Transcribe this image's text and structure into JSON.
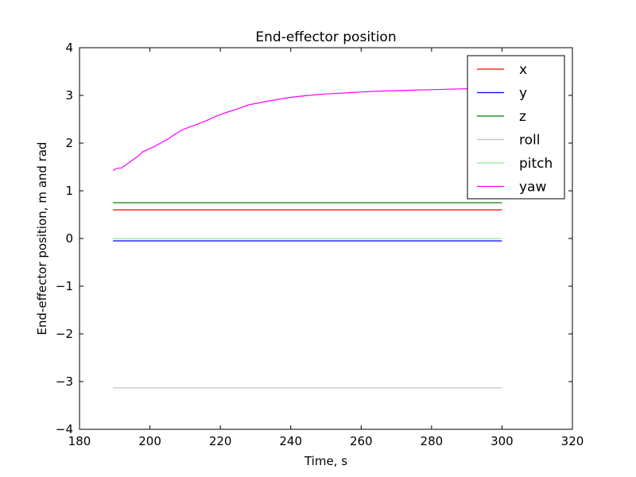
{
  "chart_data": {
    "type": "line",
    "title": "End-effector position",
    "xlabel": "Time, s",
    "ylabel": "End-effector position, m and rad",
    "xlim": [
      180,
      320
    ],
    "ylim": [
      -4,
      4
    ],
    "xticks": [
      180,
      200,
      220,
      240,
      260,
      280,
      300,
      320
    ],
    "xtick_labels": [
      "180",
      "200",
      "220",
      "240",
      "260",
      "280",
      "300",
      "320"
    ],
    "yticks": [
      -4,
      -3,
      -2,
      -1,
      0,
      1,
      2,
      3,
      4
    ],
    "ytick_labels": [
      "−4",
      "−3",
      "−2",
      "−1",
      "0",
      "1",
      "2",
      "3",
      "4"
    ],
    "grid": false,
    "legend_position": "top-right",
    "series": [
      {
        "name": "x",
        "color": "#ff0000",
        "x": [
          189.5,
          300
        ],
        "y": [
          0.6,
          0.6
        ]
      },
      {
        "name": "y",
        "color": "#0000ff",
        "x": [
          189.5,
          300
        ],
        "y": [
          -0.05,
          -0.05
        ]
      },
      {
        "name": "z",
        "color": "#008000",
        "x": [
          189.5,
          300
        ],
        "y": [
          0.75,
          0.75
        ]
      },
      {
        "name": "roll",
        "color": "#bfbfbf",
        "x": [
          189.5,
          300
        ],
        "y": [
          -3.13,
          -3.13
        ]
      },
      {
        "name": "pitch",
        "color": "#90ee90",
        "x": [
          189.5,
          300
        ],
        "y": [
          0.0,
          0.0
        ]
      },
      {
        "name": "yaw",
        "color": "#ff00ff",
        "x": [
          189.5,
          190.5,
          192,
          193.5,
          195,
          196.5,
          198,
          199.5,
          201,
          203,
          205,
          207,
          209,
          211,
          213,
          216,
          219,
          222,
          225,
          228,
          232,
          236,
          240,
          245,
          250,
          255,
          260,
          265,
          270,
          275,
          280,
          285,
          290,
          295,
          300
        ],
        "y": [
          1.42,
          1.47,
          1.48,
          1.56,
          1.64,
          1.72,
          1.82,
          1.87,
          1.92,
          2.0,
          2.08,
          2.18,
          2.27,
          2.33,
          2.38,
          2.47,
          2.57,
          2.65,
          2.72,
          2.8,
          2.86,
          2.91,
          2.96,
          3.0,
          3.03,
          3.05,
          3.07,
          3.09,
          3.1,
          3.11,
          3.12,
          3.13,
          3.14,
          3.14,
          3.14
        ]
      }
    ]
  }
}
